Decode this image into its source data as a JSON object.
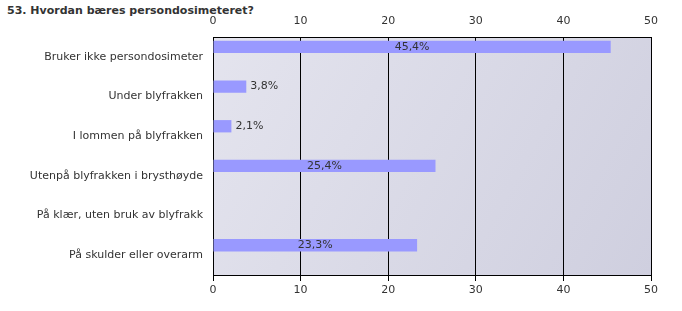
{
  "chart_data": {
    "type": "bar",
    "orientation": "horizontal",
    "title": "53. Hvordan bæres persondosimeteret?",
    "categories": [
      "Bruker ikke persondosimeter",
      "Under blyfrakken",
      "I lommen på blyfrakken",
      "Utenpå blyfrakken i brysthøyde",
      "På klær, uten bruk av blyfrakk",
      "På skulder eller overarm"
    ],
    "values": [
      45.4,
      3.8,
      2.1,
      25.4,
      null,
      23.3
    ],
    "value_labels": [
      "45,4%",
      "3,8%",
      "2,1%",
      "25,4%",
      null,
      "23,3%"
    ],
    "data_labels": true,
    "color": "#9999ff",
    "xlim": [
      0,
      50
    ],
    "xticks": [
      0,
      10,
      20,
      30,
      40,
      50
    ],
    "grid": true
  }
}
